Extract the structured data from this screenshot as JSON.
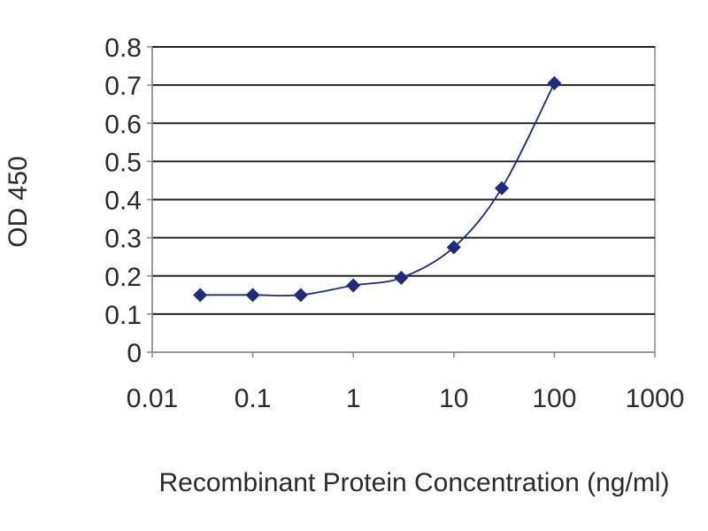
{
  "chart_data": {
    "type": "line",
    "title": "",
    "xlabel": "Recombinant Protein Concentration (ng/ml)",
    "ylabel": "OD 450",
    "x_scale": "log",
    "xlim": [
      0.01,
      1000
    ],
    "ylim": [
      0,
      0.8
    ],
    "x_ticks": [
      0.01,
      0.1,
      1,
      10,
      100,
      1000
    ],
    "x_tick_labels": [
      "0.01",
      "0.1",
      "1",
      "10",
      "100",
      "1000"
    ],
    "y_ticks": [
      0,
      0.1,
      0.2,
      0.3,
      0.4,
      0.5,
      0.6,
      0.7,
      0.8
    ],
    "y_tick_labels": [
      "0",
      "0.1",
      "0.2",
      "0.3",
      "0.4",
      "0.5",
      "0.6",
      "0.7",
      "0.8"
    ],
    "grid": "horizontal",
    "legend": "none",
    "marker": "diamond",
    "series": [
      {
        "color": "#1f2a7a",
        "x": [
          0.03,
          0.1,
          0.3,
          1,
          3,
          10,
          30,
          100
        ],
        "y": [
          0.15,
          0.15,
          0.15,
          0.175,
          0.195,
          0.275,
          0.43,
          0.705
        ]
      }
    ]
  }
}
